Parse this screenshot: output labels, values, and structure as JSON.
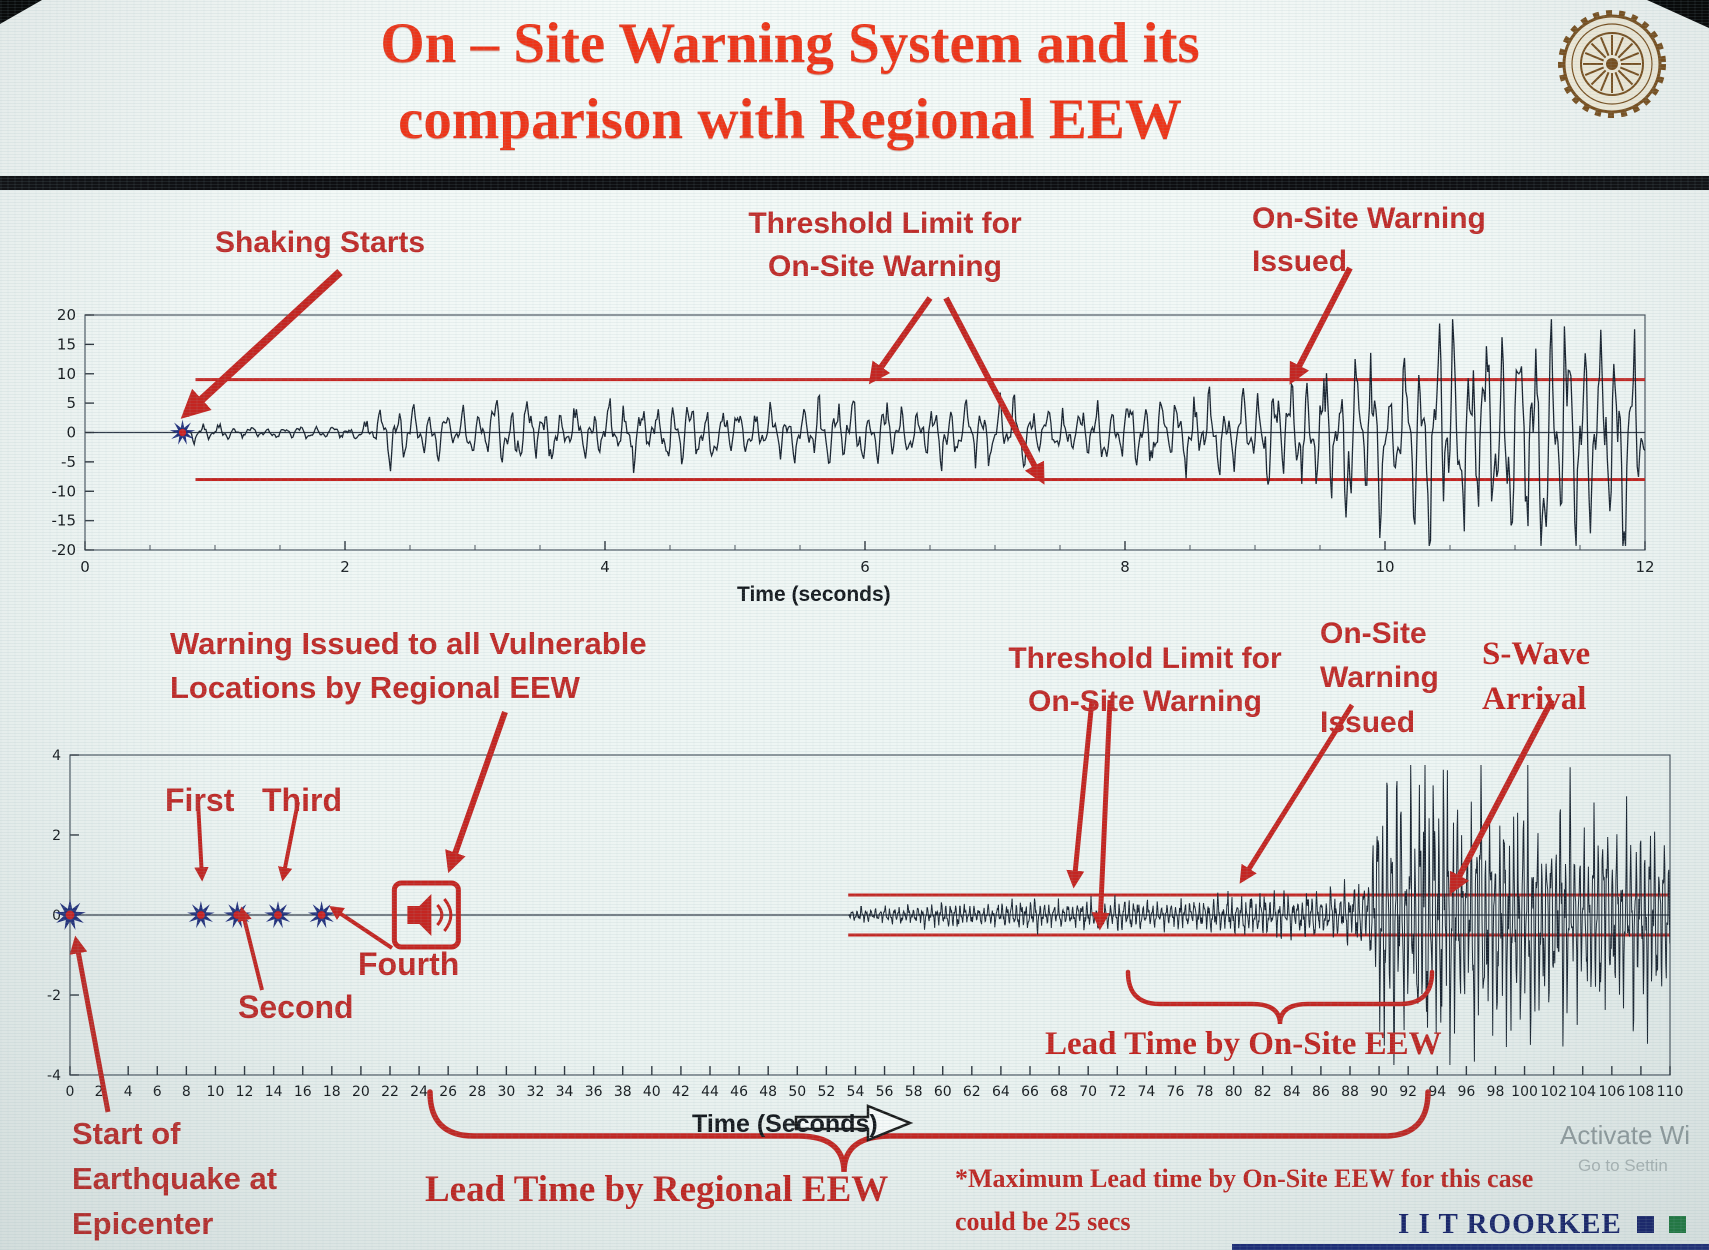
{
  "slide": {
    "title_line1": "On – Site Warning System and its",
    "title_line2": "comparison with Regional EEW"
  },
  "colors": {
    "title_red": "#ee3418",
    "annotation_red": "#c02a28",
    "wave": "#18222f",
    "threshold": "#c42521",
    "marker_blue": "#22307d",
    "marker_center_red": "#cc2222",
    "iit_navy": "#15216b",
    "iit_green": "#1d7a3f",
    "logo_brown": "#7a4f1d"
  },
  "chart_data": [
    {
      "type": "line",
      "name": "onsite-accelerogram",
      "xlabel": "Time (seconds)",
      "xlim": [
        0,
        12
      ],
      "ylim": [
        -20,
        20
      ],
      "xticks": [
        0,
        2,
        4,
        6,
        8,
        10,
        12
      ],
      "yticks": [
        20,
        15,
        10,
        5,
        0,
        -5,
        -10,
        -15,
        -20
      ],
      "grid": false,
      "minor_tick_interval": 0.5,
      "threshold_upper": 9,
      "threshold_lower": -8,
      "threshold_t_start": 0.85,
      "events": {
        "shaking_starts_t": 0.75,
        "onsite_warning_issued_t": 9.3
      },
      "wave_freq_hz": 8,
      "seed": 7,
      "dt": 0.01,
      "t_start": 0.75,
      "t_end": 12,
      "amp_cap": 19.3,
      "envelope": [
        [
          0.75,
          0.5
        ],
        [
          0.9,
          1.4
        ],
        [
          1.2,
          0.7
        ],
        [
          2.1,
          0.9
        ],
        [
          2.35,
          4.6
        ],
        [
          2.8,
          2.8
        ],
        [
          3.3,
          4.2
        ],
        [
          3.9,
          3.0
        ],
        [
          4.5,
          4.4
        ],
        [
          5.1,
          3.1
        ],
        [
          5.7,
          4.6
        ],
        [
          6.3,
          3.3
        ],
        [
          6.9,
          4.8
        ],
        [
          7.5,
          3.4
        ],
        [
          8.1,
          4.6
        ],
        [
          8.7,
          5.2
        ],
        [
          9.1,
          6.0
        ],
        [
          9.4,
          8.5
        ],
        [
          9.8,
          11.0
        ],
        [
          10.1,
          9.0
        ],
        [
          10.45,
          16.0
        ],
        [
          10.8,
          11.5
        ],
        [
          11.15,
          17.5
        ],
        [
          11.5,
          12.5
        ],
        [
          11.75,
          17.0
        ],
        [
          12,
          15.0
        ]
      ]
    },
    {
      "type": "line",
      "name": "regional-vs-onsite-timeline",
      "xlabel": "Time (Seconds)",
      "xlim": [
        0,
        110
      ],
      "ylim": [
        -4,
        4
      ],
      "xticks": [
        0,
        2,
        4,
        6,
        8,
        10,
        12,
        14,
        16,
        18,
        20,
        22,
        24,
        26,
        28,
        30,
        32,
        34,
        36,
        38,
        40,
        42,
        44,
        46,
        48,
        50,
        52,
        54,
        56,
        58,
        60,
        62,
        64,
        66,
        68,
        70,
        72,
        74,
        76,
        78,
        80,
        82,
        84,
        86,
        88,
        90,
        92,
        94,
        96,
        98,
        100,
        102,
        104,
        106,
        108,
        110
      ],
      "yticks": [
        4,
        2,
        0,
        -2,
        -4
      ],
      "grid": false,
      "threshold_upper": 0.5,
      "threshold_lower": -0.5,
      "threshold_t_start": 53.5,
      "p_wave_detections": [
        {
          "label": "Start of Earthquake at Epicenter",
          "t": 0
        },
        {
          "label": "First",
          "t": 9
        },
        {
          "label": "Second",
          "t": 11.5
        },
        {
          "label": "Third",
          "t": 14.3
        },
        {
          "label": "Fourth",
          "t": 17.3
        }
      ],
      "regional_warning_icon_t": 24.5,
      "onsite_warning_issued_t": 80,
      "s_wave_arrival_t": 90,
      "max_onsite_lead_time": "25 secs",
      "wave_freq_hz": 3.1,
      "seed": 13,
      "dt": 0.035,
      "t_start": 53.5,
      "t_end": 110,
      "amp_cap": 3.75,
      "envelope": [
        [
          53.5,
          0.05
        ],
        [
          54,
          0.14
        ],
        [
          57,
          0.16
        ],
        [
          60,
          0.24
        ],
        [
          63,
          0.2
        ],
        [
          66,
          0.3
        ],
        [
          69,
          0.24
        ],
        [
          72,
          0.3
        ],
        [
          75,
          0.26
        ],
        [
          78,
          0.32
        ],
        [
          80,
          0.38
        ],
        [
          82,
          0.42
        ],
        [
          84,
          0.38
        ],
        [
          86,
          0.5
        ],
        [
          88,
          0.55
        ],
        [
          89.3,
          0.8
        ],
        [
          90,
          2.3
        ],
        [
          91,
          2.9
        ],
        [
          92,
          2.3
        ],
        [
          93,
          3.1
        ],
        [
          94,
          2.5
        ],
        [
          95,
          3.0
        ],
        [
          96,
          2.3
        ],
        [
          97,
          2.7
        ],
        [
          98,
          2.1
        ],
        [
          99.5,
          2.5
        ],
        [
          101,
          1.9
        ],
        [
          102.5,
          2.3
        ],
        [
          104,
          1.7
        ],
        [
          105.5,
          2.1
        ],
        [
          107,
          1.6
        ],
        [
          108.5,
          1.9
        ],
        [
          110,
          1.5
        ]
      ]
    }
  ],
  "annotations": {
    "top": {
      "shaking_starts": "Shaking Starts",
      "threshold_limit_l1": "Threshold Limit for",
      "threshold_limit_l2": "On-Site Warning",
      "onsite_issued_l1": "On-Site Warning",
      "onsite_issued_l2": "Issued"
    },
    "bottom": {
      "regional_warning_l1": "Warning Issued to all Vulnerable",
      "regional_warning_l2": "Locations by Regional EEW",
      "threshold_limit_l1": "Threshold Limit for",
      "threshold_limit_l2": "On-Site Warning",
      "onsite_issued_l1": "On-Site",
      "onsite_issued_l2": "Warning",
      "onsite_issued_l3": "Issued",
      "swave_l1": "S-Wave",
      "swave_l2": "Arrival",
      "first": "First",
      "second": "Second",
      "third": "Third",
      "fourth": "Fourth",
      "lead_time_onsite": "Lead Time by On-Site EEW",
      "lead_time_regional": "Lead Time by Regional EEW",
      "start_epicenter_l1": "Start of",
      "start_epicenter_l2": "Earthquake at",
      "start_epicenter_l3": "Epicenter",
      "max_note_l1": "*Maximum Lead time by On-Site EEW for this case",
      "max_note_l2": "could be 25 secs"
    }
  },
  "footer": {
    "brand": "I I T ROORKEE",
    "watermark_line1": "Activate Wi",
    "watermark_line2": "Go to Settin"
  }
}
